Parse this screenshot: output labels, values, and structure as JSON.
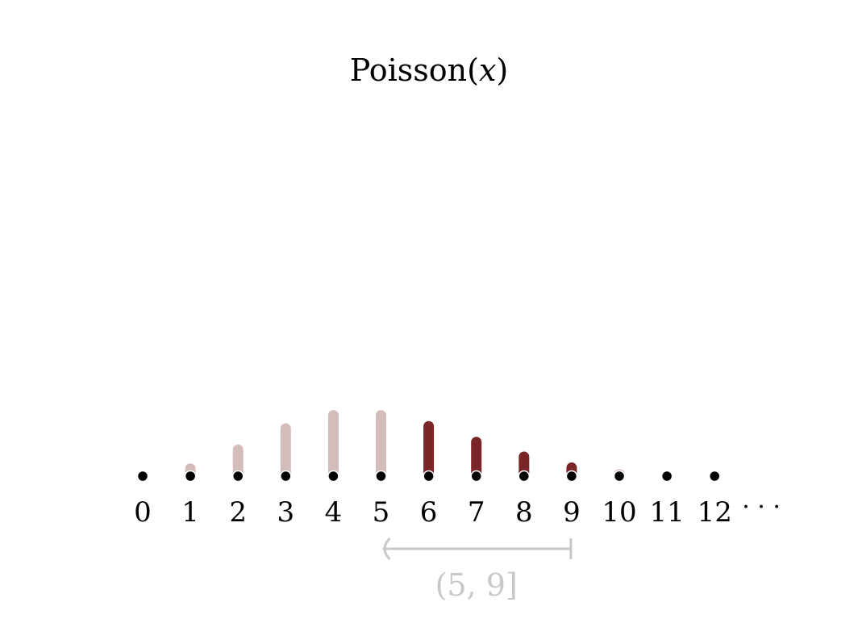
{
  "chart_data": {
    "type": "bar",
    "title": "Poisson(x)",
    "title_parts": {
      "name": "Poisson",
      "open": "(",
      "variable": "x",
      "close": ")"
    },
    "xlabel": "",
    "ylabel": "",
    "grid": false,
    "categories": [
      "0",
      "1",
      "2",
      "3",
      "4",
      "5",
      "6",
      "7",
      "8",
      "9",
      "10",
      "11",
      "12"
    ],
    "x": [
      0,
      1,
      2,
      3,
      4,
      5,
      6,
      7,
      8,
      9,
      10,
      11,
      12
    ],
    "values": [
      0.0067,
      0.0337,
      0.0842,
      0.1404,
      0.1755,
      0.1755,
      0.1462,
      0.1044,
      0.0653,
      0.0363,
      0.0181,
      0.0082,
      0.0034
    ],
    "ylim": [
      0,
      0.18
    ],
    "trailing_symbol": "· · ·",
    "highlight_interval": {
      "label": "(5, 9]",
      "start": 5,
      "end": 9,
      "start_closed": false,
      "end_closed": true
    },
    "colors": {
      "bar": "#d4bcbb",
      "bar_highlight": "#7a2528",
      "point": "#000000",
      "interval": "#c8c8c8"
    }
  }
}
